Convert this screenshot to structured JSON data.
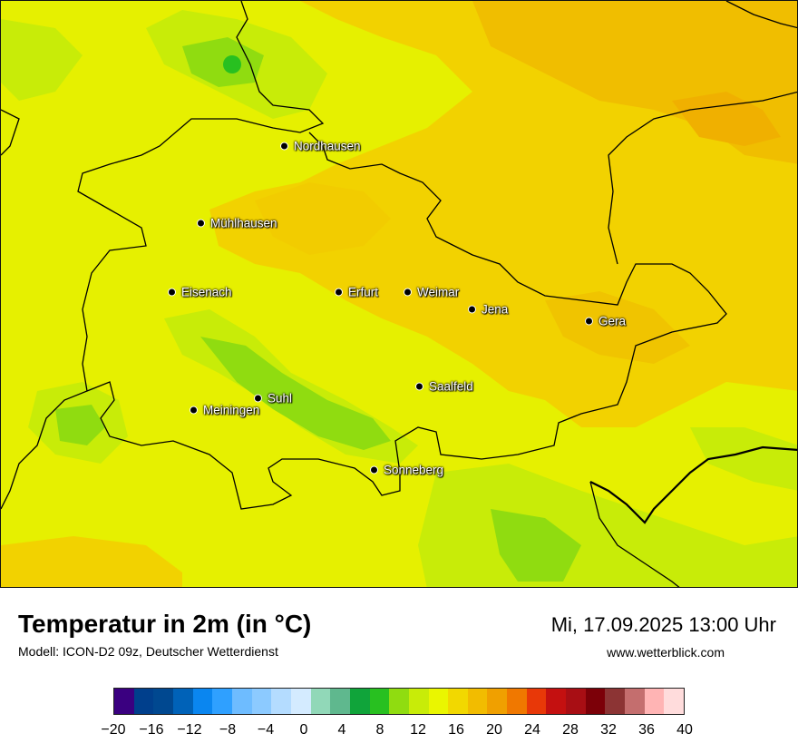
{
  "map": {
    "cities": [
      {
        "name": "Nordhausen"
      },
      {
        "name": "Mühlhausen"
      },
      {
        "name": "Eisenach"
      },
      {
        "name": "Erfurt"
      },
      {
        "name": "Weimar"
      },
      {
        "name": "Jena"
      },
      {
        "name": "Gera"
      },
      {
        "name": "Saalfeld"
      },
      {
        "name": "Suhl"
      },
      {
        "name": "Meiningen"
      },
      {
        "name": "Sonneberg"
      }
    ]
  },
  "header": {
    "title": "Temperatur in 2m (in °C)",
    "subtitle": "Modell: ICON-D2 09z, Deutscher Wetterdienst",
    "datetime": "Mi, 17.09.2025 13:00 Uhr",
    "website": "www.wetterblick.com"
  },
  "legend": {
    "colors": [
      "#3a0080",
      "#003f8c",
      "#004890",
      "#0062b8",
      "#0a86f0",
      "#2fa0ff",
      "#6ebcff",
      "#8ccaff",
      "#b4dcff",
      "#d4ebff",
      "#91d8b8",
      "#5fb88e",
      "#10a43a",
      "#28c020",
      "#90dc10",
      "#c8ec08",
      "#eaf600",
      "#f2d800",
      "#f2bc00",
      "#f0a000",
      "#f07800",
      "#e83808",
      "#c41010",
      "#a80e14",
      "#7c0008",
      "#8c3434",
      "#c46e6e",
      "#ffb4b4",
      "#ffdcdc"
    ],
    "tick_labels": [
      "−20",
      "−16",
      "−12",
      "−8",
      "−4",
      "0",
      "4",
      "8",
      "12",
      "16",
      "20",
      "24",
      "28",
      "32",
      "36",
      "40"
    ]
  }
}
